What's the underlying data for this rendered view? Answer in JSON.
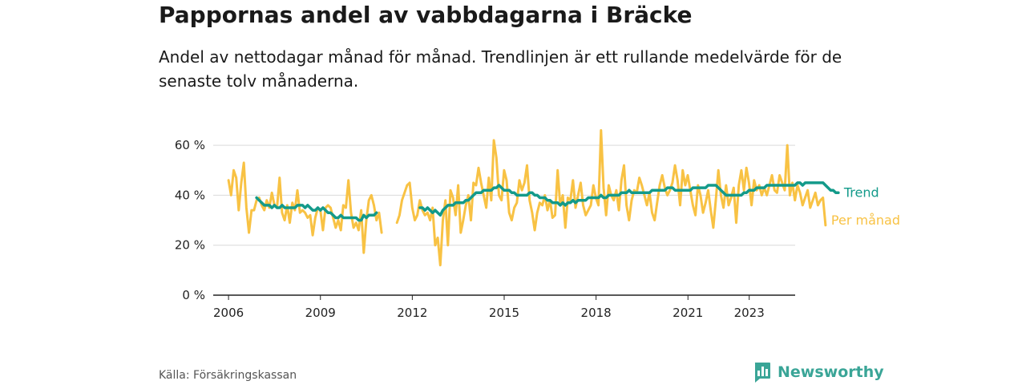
{
  "header": {
    "title": "Pappornas andel av vabbdagarna i Bräcke",
    "subtitle": "Andel av nettodagar månad för månad. Trendlinjen är ett rullande medelvärde för de senaste tolv månaderna."
  },
  "footer": {
    "source": "Källa: Försäkringskassan",
    "brand": "Newsworthy"
  },
  "colors": {
    "monthly": "#f8c244",
    "trend": "#139a8a",
    "grid": "#d9d9d9",
    "brand": "#3aa597"
  },
  "chart_data": {
    "type": "line",
    "title": "Pappornas andel av vabbdagarna i Bräcke",
    "xlabel": "",
    "ylabel": "",
    "ylim": [
      0,
      70
    ],
    "xlim": [
      2005.5,
      2024.5
    ],
    "y_ticks": [
      0,
      20,
      40,
      60
    ],
    "y_tick_labels": [
      "0 %",
      "20 %",
      "40 %",
      "60 %"
    ],
    "x_ticks": [
      2006,
      2009,
      2012,
      2015,
      2018,
      2021,
      2023
    ],
    "x_tick_labels": [
      "2006",
      "2009",
      "2012",
      "2015",
      "2018",
      "2021",
      "2023"
    ],
    "grid": true,
    "series": [
      {
        "name": "Per månad",
        "label": "Per månad",
        "start": 2006.0,
        "step": 0.0833,
        "values": [
          46,
          40,
          50,
          47,
          34,
          45,
          53,
          35,
          25,
          34,
          34,
          38,
          39,
          36,
          34,
          38,
          35,
          41,
          36,
          35,
          47,
          33,
          30,
          36,
          29,
          37,
          34,
          42,
          33,
          34,
          33,
          31,
          32,
          24,
          31,
          35,
          34,
          26,
          35,
          36,
          35,
          31,
          27,
          30,
          26,
          36,
          35,
          46,
          33,
          27,
          29,
          26,
          34,
          17,
          30,
          38,
          40,
          36,
          30,
          33,
          25,
          null,
          null,
          null,
          null,
          null,
          29,
          32,
          38,
          41,
          44,
          45,
          35,
          30,
          32,
          38,
          34,
          32,
          33,
          30,
          35,
          20,
          23,
          12,
          30,
          38,
          20,
          42,
          39,
          32,
          44,
          25,
          30,
          36,
          40,
          30,
          45,
          44,
          51,
          45,
          40,
          35,
          47,
          38,
          62,
          55,
          40,
          38,
          50,
          46,
          33,
          30,
          35,
          37,
          46,
          42,
          45,
          52,
          38,
          33,
          26,
          33,
          37,
          36,
          40,
          34,
          38,
          31,
          32,
          50,
          36,
          40,
          27,
          39,
          38,
          46,
          35,
          40,
          45,
          36,
          32,
          34,
          36,
          44,
          39,
          36,
          66,
          43,
          32,
          44,
          40,
          38,
          42,
          34,
          46,
          52,
          36,
          30,
          38,
          42,
          41,
          47,
          44,
          40,
          36,
          41,
          33,
          30,
          37,
          44,
          48,
          43,
          40,
          42,
          45,
          52,
          46,
          36,
          50,
          44,
          48,
          42,
          36,
          32,
          44,
          40,
          33,
          37,
          42,
          34,
          27,
          38,
          50,
          40,
          35,
          44,
          36,
          39,
          43,
          29,
          44,
          50,
          42,
          51,
          45,
          36,
          46,
          42,
          44,
          40,
          43,
          40,
          44,
          48,
          42,
          41,
          48,
          45,
          42,
          60,
          40,
          45,
          38,
          44,
          41,
          36,
          39,
          42,
          35,
          38,
          41,
          36,
          38,
          39,
          28
        ]
      },
      {
        "name": "Trend",
        "label": "Trend",
        "start": 2006.917,
        "step": 0.0833,
        "values": [
          39,
          38,
          37,
          36,
          36,
          36,
          35,
          36,
          35,
          35,
          36,
          35,
          35,
          35,
          35,
          35,
          36,
          36,
          36,
          35,
          36,
          35,
          34,
          34,
          35,
          34,
          35,
          34,
          33,
          33,
          32,
          31,
          31,
          32,
          31,
          31,
          31,
          31,
          31,
          31,
          30,
          30,
          32,
          31,
          32,
          32,
          32,
          33,
          null,
          null,
          null,
          null,
          null,
          null,
          null,
          null,
          null,
          null,
          null,
          null,
          null,
          null,
          null,
          null,
          35,
          35,
          34,
          35,
          34,
          33,
          34,
          33,
          32,
          34,
          35,
          36,
          36,
          36,
          37,
          37,
          37,
          37,
          38,
          38,
          39,
          40,
          41,
          41,
          41,
          42,
          42,
          42,
          42,
          43,
          43,
          44,
          43,
          42,
          42,
          42,
          41,
          41,
          40,
          40,
          40,
          40,
          40,
          41,
          41,
          40,
          40,
          39,
          39,
          39,
          38,
          38,
          37,
          37,
          37,
          36,
          37,
          36,
          37,
          37,
          38,
          37,
          38,
          38,
          38,
          38,
          39,
          39,
          39,
          39,
          39,
          40,
          39,
          39,
          40,
          40,
          40,
          40,
          40,
          41,
          41,
          41,
          42,
          41,
          41,
          41,
          41,
          41,
          41,
          41,
          41,
          42,
          42,
          42,
          42,
          42,
          42,
          43,
          43,
          43,
          42,
          42,
          42,
          42,
          42,
          42,
          42,
          43,
          43,
          43,
          43,
          43,
          43,
          44,
          44,
          44,
          44,
          43,
          42,
          41,
          40,
          40,
          40,
          40,
          40,
          40,
          40,
          41,
          41,
          42,
          42,
          42,
          43,
          43,
          43,
          43,
          44,
          44,
          44,
          44,
          44,
          44,
          44,
          44,
          44,
          44,
          44,
          44,
          45,
          45,
          44,
          45,
          45,
          45,
          45,
          45,
          45,
          45,
          45,
          44,
          43,
          42,
          42,
          41,
          41
        ]
      }
    ]
  }
}
